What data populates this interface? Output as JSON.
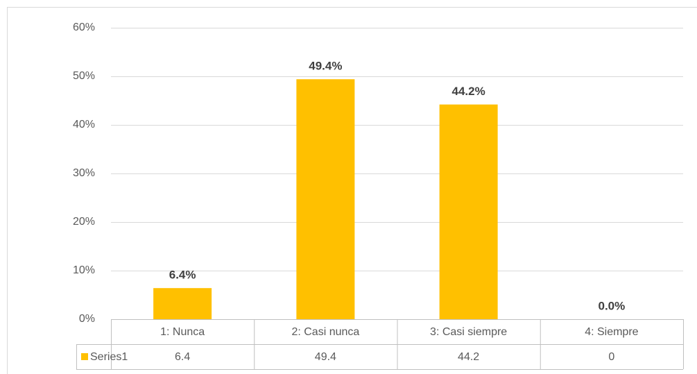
{
  "chart_data": {
    "type": "bar",
    "categories": [
      "1: Nunca",
      "2: Casi nunca",
      "3: Casi siempre",
      "4: Siempre"
    ],
    "series": [
      {
        "name": "Series1",
        "color": "#ffc000",
        "values": [
          6.4,
          49.4,
          44.2,
          0
        ],
        "value_labels": [
          "6.4%",
          "49.4%",
          "44.2%",
          "0.0%"
        ]
      }
    ],
    "ylim": [
      0,
      60
    ],
    "yticks": [
      {
        "value": 0,
        "label": "0%"
      },
      {
        "value": 10,
        "label": "10%"
      },
      {
        "value": 20,
        "label": "20%"
      },
      {
        "value": 30,
        "label": "30%"
      },
      {
        "value": 40,
        "label": "40%"
      },
      {
        "value": 50,
        "label": "50%"
      },
      {
        "value": 60,
        "label": "60%"
      }
    ],
    "grid": true,
    "data_table": true
  }
}
